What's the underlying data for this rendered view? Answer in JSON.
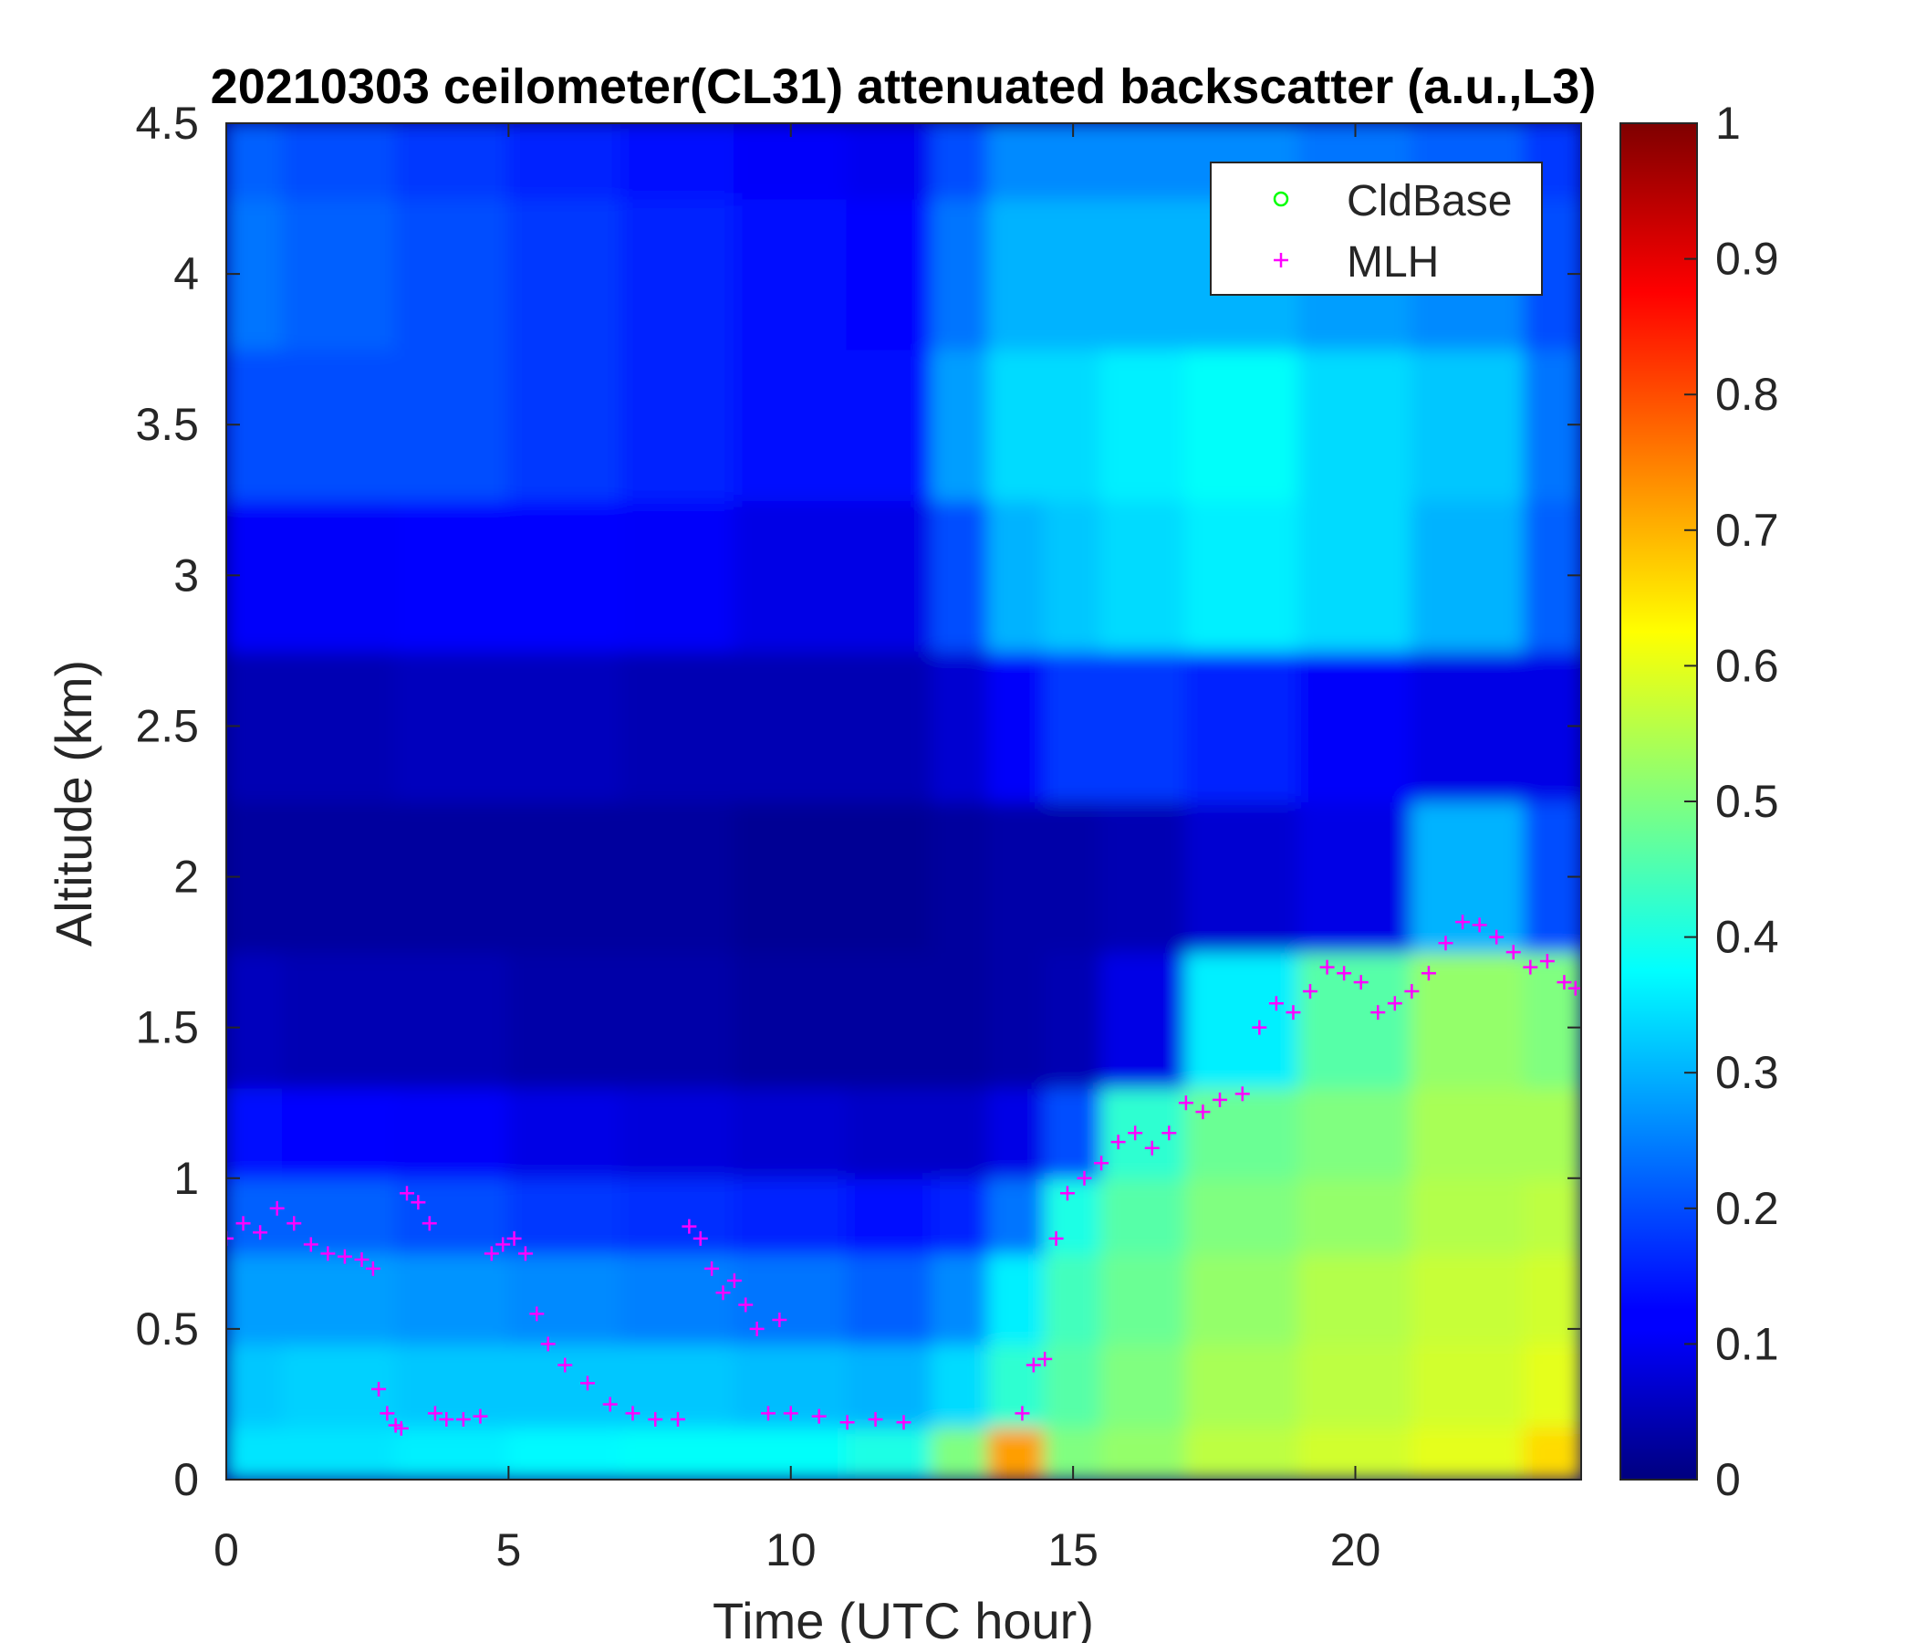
{
  "chart_data": {
    "type": "heatmap",
    "title": "20210303 ceilometer(CL31) attenuated backscatter (a.u.,L3)",
    "xlabel": "Time (UTC hour)",
    "ylabel": "Altitude (km)",
    "xlim": [
      0,
      24
    ],
    "ylim": [
      0,
      4.5
    ],
    "xticks": [
      "0",
      "5",
      "10",
      "15",
      "20"
    ],
    "yticks": [
      "0",
      "0.5",
      "1",
      "1.5",
      "2",
      "2.5",
      "3",
      "3.5",
      "4",
      "4.5"
    ],
    "colorbar": {
      "range": [
        0,
        1
      ],
      "ticks": [
        "0",
        "0.1",
        "0.2",
        "0.3",
        "0.4",
        "0.5",
        "0.6",
        "0.7",
        "0.8",
        "0.9",
        "1"
      ],
      "colormap": "jet"
    },
    "legend": {
      "position": "top-right",
      "entries": [
        {
          "name": "CldBase",
          "marker": "circle",
          "color": "#00ff00"
        },
        {
          "name": "MLH",
          "marker": "plus",
          "color": "#ff00ff"
        }
      ]
    },
    "backscatter_profiles": {
      "description_levels_at_altitudes_km": [
        0.05,
        0.3,
        0.6,
        0.9,
        1.1,
        1.5,
        2.0,
        2.5,
        3.0,
        3.5,
        4.0,
        4.5
      ],
      "hours": [
        0,
        2,
        4,
        6,
        8,
        10,
        12,
        13,
        14,
        15,
        16,
        18,
        20,
        22,
        24
      ],
      "values": [
        [
          0.35,
          0.32,
          0.28,
          0.22,
          0.14,
          0.06,
          0.03,
          0.05,
          0.12,
          0.2,
          0.24,
          0.22
        ],
        [
          0.35,
          0.33,
          0.28,
          0.22,
          0.13,
          0.05,
          0.03,
          0.05,
          0.12,
          0.2,
          0.22,
          0.2
        ],
        [
          0.36,
          0.32,
          0.27,
          0.2,
          0.12,
          0.05,
          0.03,
          0.06,
          0.13,
          0.2,
          0.2,
          0.18
        ],
        [
          0.37,
          0.32,
          0.26,
          0.18,
          0.1,
          0.04,
          0.03,
          0.06,
          0.13,
          0.18,
          0.18,
          0.16
        ],
        [
          0.38,
          0.32,
          0.25,
          0.17,
          0.09,
          0.04,
          0.03,
          0.05,
          0.12,
          0.16,
          0.16,
          0.14
        ],
        [
          0.38,
          0.31,
          0.24,
          0.16,
          0.08,
          0.03,
          0.02,
          0.05,
          0.1,
          0.14,
          0.14,
          0.12
        ],
        [
          0.4,
          0.3,
          0.22,
          0.14,
          0.07,
          0.03,
          0.02,
          0.05,
          0.1,
          0.14,
          0.13,
          0.11
        ],
        [
          0.5,
          0.34,
          0.26,
          0.16,
          0.07,
          0.03,
          0.03,
          0.08,
          0.2,
          0.28,
          0.24,
          0.2
        ],
        [
          0.72,
          0.42,
          0.36,
          0.24,
          0.1,
          0.04,
          0.04,
          0.12,
          0.3,
          0.34,
          0.3,
          0.26
        ],
        [
          0.5,
          0.46,
          0.44,
          0.4,
          0.2,
          0.05,
          0.04,
          0.18,
          0.32,
          0.34,
          0.3,
          0.26
        ],
        [
          0.52,
          0.5,
          0.48,
          0.46,
          0.42,
          0.1,
          0.05,
          0.18,
          0.34,
          0.36,
          0.3,
          0.26
        ],
        [
          0.56,
          0.54,
          0.52,
          0.5,
          0.48,
          0.36,
          0.08,
          0.16,
          0.36,
          0.38,
          0.3,
          0.26
        ],
        [
          0.58,
          0.56,
          0.55,
          0.52,
          0.5,
          0.46,
          0.1,
          0.12,
          0.34,
          0.34,
          0.28,
          0.24
        ],
        [
          0.6,
          0.58,
          0.57,
          0.55,
          0.54,
          0.52,
          0.3,
          0.1,
          0.3,
          0.32,
          0.26,
          0.22
        ],
        [
          0.66,
          0.6,
          0.58,
          0.56,
          0.54,
          0.5,
          0.2,
          0.1,
          0.22,
          0.24,
          0.2,
          0.18
        ]
      ]
    },
    "series": [
      {
        "name": "MLH",
        "x": [
          0,
          0.3,
          0.6,
          0.9,
          1.2,
          1.5,
          1.8,
          2.1,
          2.4,
          2.6,
          2.7,
          2.85,
          3.0,
          3.1,
          3.2,
          3.4,
          3.6,
          3.7,
          3.9,
          4.2,
          4.5,
          4.7,
          4.9,
          5.1,
          5.3,
          5.5,
          5.7,
          6.0,
          6.4,
          6.8,
          7.2,
          7.6,
          8.0,
          8.2,
          8.4,
          8.6,
          8.8,
          9.0,
          9.2,
          9.4,
          9.6,
          9.8,
          10.0,
          10.5,
          11.0,
          11.5,
          12.0,
          14.1,
          14.3,
          14.5,
          14.7,
          14.9,
          15.2,
          15.5,
          15.8,
          16.1,
          16.4,
          16.7,
          17.0,
          17.3,
          17.6,
          18.0,
          18.3,
          18.6,
          18.9,
          19.2,
          19.5,
          19.8,
          20.1,
          20.4,
          20.7,
          21.0,
          21.3,
          21.6,
          21.9,
          22.2,
          22.5,
          22.8,
          23.1,
          23.4,
          23.7,
          23.9
        ],
        "y": [
          0.8,
          0.85,
          0.82,
          0.9,
          0.85,
          0.78,
          0.75,
          0.74,
          0.73,
          0.7,
          0.3,
          0.22,
          0.18,
          0.17,
          0.95,
          0.92,
          0.85,
          0.22,
          0.2,
          0.2,
          0.21,
          0.75,
          0.78,
          0.8,
          0.75,
          0.55,
          0.45,
          0.38,
          0.32,
          0.25,
          0.22,
          0.2,
          0.2,
          0.84,
          0.8,
          0.7,
          0.62,
          0.66,
          0.58,
          0.5,
          0.22,
          0.53,
          0.22,
          0.21,
          0.19,
          0.2,
          0.19,
          0.22,
          0.38,
          0.4,
          0.8,
          0.95,
          1.0,
          1.05,
          1.12,
          1.15,
          1.1,
          1.15,
          1.25,
          1.22,
          1.26,
          1.28,
          1.5,
          1.58,
          1.55,
          1.62,
          1.7,
          1.68,
          1.65,
          1.55,
          1.58,
          1.62,
          1.68,
          1.78,
          1.85,
          1.84,
          1.8,
          1.75,
          1.7,
          1.72,
          1.65,
          1.63
        ]
      },
      {
        "name": "CldBase",
        "x": [],
        "y": []
      }
    ]
  }
}
